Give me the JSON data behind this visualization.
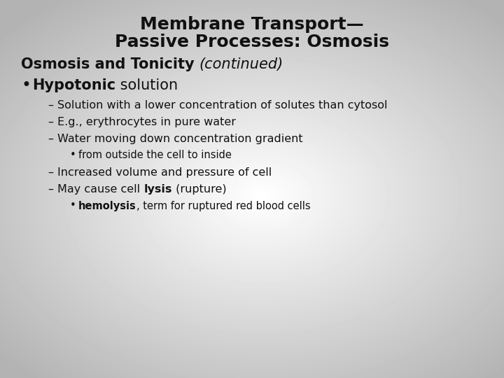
{
  "title_line1": "Membrane Transport—",
  "title_line2": "Passive Processes: Osmosis",
  "title_fontsize": 18,
  "subtitle_bold": "Osmosis and Tonicity ",
  "subtitle_italic": "(continued)",
  "subtitle_fontsize": 15,
  "bullet1_bold": "Hypotonic",
  "bullet1_normal": " solution",
  "bullet1_fontsize": 15,
  "sub_bullet_fontsize": 11.5,
  "sub_sub_fontsize": 10.5,
  "text_color": "#111111",
  "fig_width": 7.2,
  "fig_height": 5.4,
  "dpi": 100
}
